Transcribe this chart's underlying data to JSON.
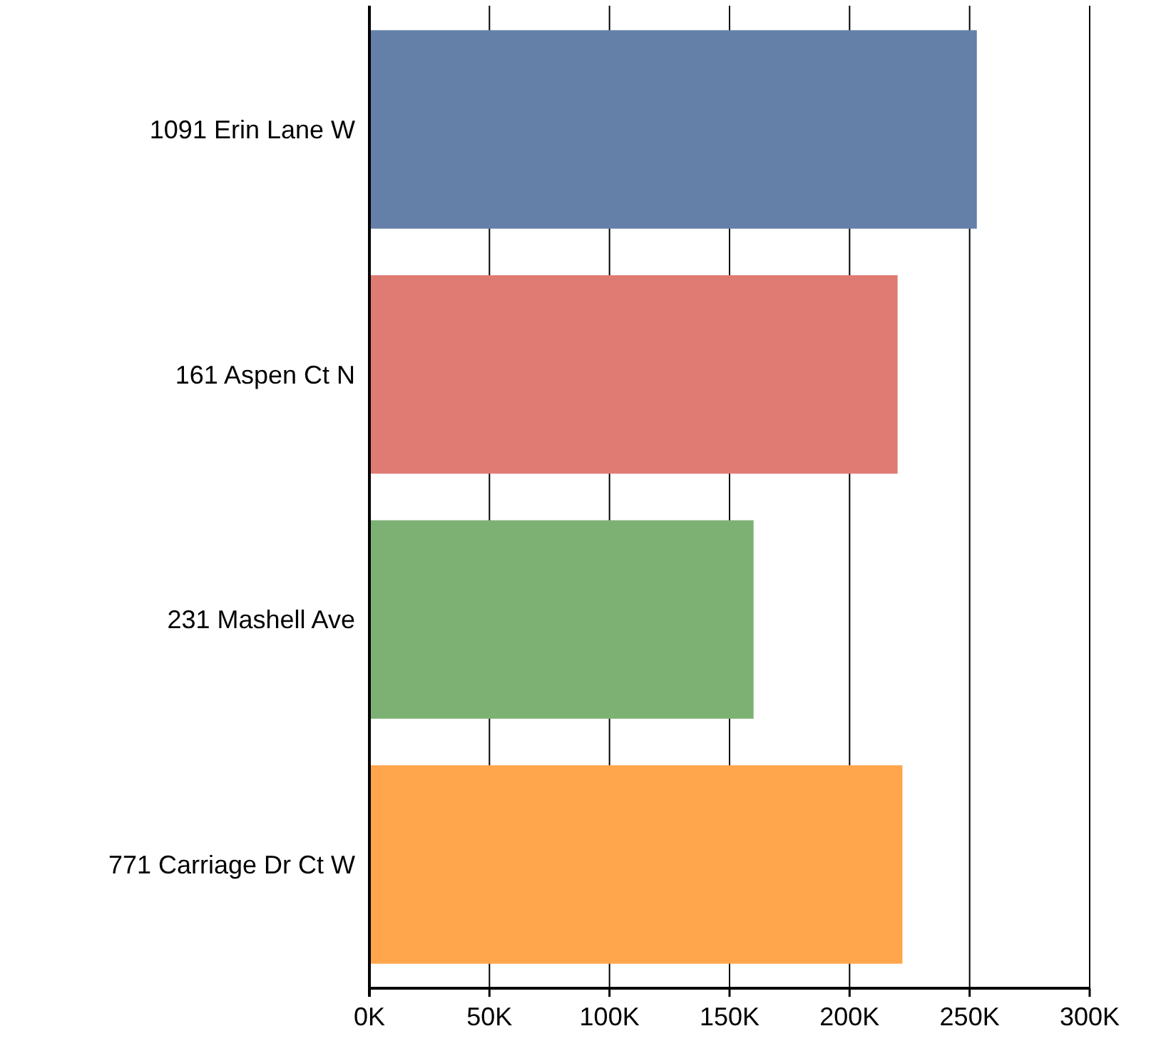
{
  "chart_data": {
    "type": "bar",
    "orientation": "horizontal",
    "categories": [
      "1091 Erin Lane W",
      "161 Aspen Ct N",
      "231 Mashell Ave",
      "771 Carriage Dr Ct W"
    ],
    "values": [
      253000,
      220000,
      160000,
      222000
    ],
    "colors": [
      "#6480a8",
      "#e07b74",
      "#7db174",
      "#ffa54c"
    ],
    "xlim": [
      0,
      300000
    ],
    "xticks": [
      {
        "value": 0,
        "label": "0K"
      },
      {
        "value": 50000,
        "label": "50K"
      },
      {
        "value": 100000,
        "label": "100K"
      },
      {
        "value": 150000,
        "label": "150K"
      },
      {
        "value": 200000,
        "label": "200K"
      },
      {
        "value": 250000,
        "label": "250K"
      },
      {
        "value": 300000,
        "label": "300K"
      }
    ],
    "grid": "x"
  }
}
